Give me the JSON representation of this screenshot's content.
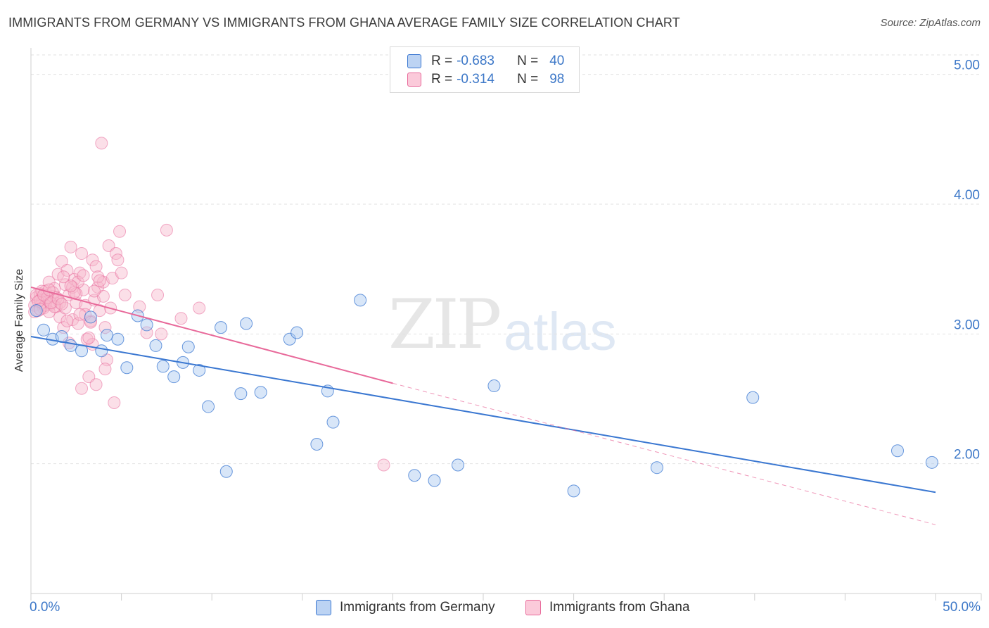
{
  "title": "IMMIGRANTS FROM GERMANY VS IMMIGRANTS FROM GHANA AVERAGE FAMILY SIZE CORRELATION CHART",
  "source": "Source: ZipAtlas.com",
  "watermark": {
    "zip": "ZIP",
    "atlas": "atlas"
  },
  "legend": {
    "r_label": "R =",
    "n_label": "N =",
    "germany": {
      "r": "-0.683",
      "n": "40"
    },
    "ghana": {
      "r": "-0.314",
      "n": "98"
    }
  },
  "bottom_legend": {
    "germany": "Immigrants from Germany",
    "ghana": "Immigrants from Ghana"
  },
  "chart_data": {
    "type": "scatter",
    "title": "IMMIGRANTS FROM GERMANY VS IMMIGRANTS FROM GHANA AVERAGE FAMILY SIZE CORRELATION CHART",
    "xlabel": "",
    "ylabel": "Average Family Size",
    "xlim": [
      0,
      50
    ],
    "ylim": [
      1.0,
      5.15
    ],
    "x_tick_labels": [
      "0.0%",
      "50.0%"
    ],
    "y_ticks": [
      2.0,
      3.0,
      4.0,
      5.0
    ],
    "y_tick_labels": [
      "2.00",
      "3.00",
      "4.00",
      "5.00"
    ],
    "colors": {
      "germany": "#3a77d1",
      "germany_fill": "#a9c8f0",
      "ghana": "#e8699a",
      "ghana_fill": "#f7b7cd"
    },
    "series": [
      {
        "name": "Immigrants from Germany",
        "r": -0.683,
        "n": 40,
        "trend": {
          "x0": 0.0,
          "y0": 2.98,
          "x1": 50.0,
          "y1": 1.78
        },
        "points": [
          [
            0.3,
            3.18
          ],
          [
            0.7,
            3.03
          ],
          [
            1.2,
            2.96
          ],
          [
            1.7,
            2.98
          ],
          [
            2.2,
            2.91
          ],
          [
            2.8,
            2.87
          ],
          [
            3.3,
            3.13
          ],
          [
            3.9,
            2.87
          ],
          [
            4.2,
            2.99
          ],
          [
            4.8,
            2.96
          ],
          [
            5.3,
            2.74
          ],
          [
            5.9,
            3.14
          ],
          [
            6.4,
            3.07
          ],
          [
            6.9,
            2.91
          ],
          [
            7.3,
            2.75
          ],
          [
            7.9,
            2.67
          ],
          [
            8.4,
            2.78
          ],
          [
            8.7,
            2.9
          ],
          [
            9.3,
            2.72
          ],
          [
            9.8,
            2.44
          ],
          [
            10.5,
            3.05
          ],
          [
            10.8,
            1.94
          ],
          [
            11.6,
            2.54
          ],
          [
            11.9,
            3.08
          ],
          [
            12.7,
            2.55
          ],
          [
            14.3,
            2.96
          ],
          [
            14.7,
            3.01
          ],
          [
            15.8,
            2.15
          ],
          [
            16.4,
            2.56
          ],
          [
            16.7,
            2.32
          ],
          [
            18.2,
            3.26
          ],
          [
            21.2,
            1.91
          ],
          [
            22.3,
            1.87
          ],
          [
            23.6,
            1.99
          ],
          [
            25.6,
            2.6
          ],
          [
            30.0,
            1.79
          ],
          [
            34.6,
            1.97
          ],
          [
            39.9,
            2.51
          ],
          [
            47.9,
            2.1
          ],
          [
            49.8,
            2.01
          ]
        ]
      },
      {
        "name": "Immigrants from Ghana",
        "r": -0.314,
        "n": 98,
        "trend": {
          "x0": 0.0,
          "y0": 3.36,
          "x1": 20.0,
          "y1": 2.62
        },
        "trend_dashed": {
          "x0": 20.0,
          "y0": 2.62,
          "x1": 50.0,
          "y1": 1.53
        },
        "points": [
          [
            0.2,
            3.22
          ],
          [
            0.3,
            3.28
          ],
          [
            0.4,
            3.18
          ],
          [
            0.5,
            3.31
          ],
          [
            0.6,
            3.24
          ],
          [
            0.7,
            3.2
          ],
          [
            0.8,
            3.33
          ],
          [
            0.9,
            3.27
          ],
          [
            1.0,
            3.4
          ],
          [
            1.1,
            3.23
          ],
          [
            1.2,
            3.29
          ],
          [
            1.3,
            3.35
          ],
          [
            1.4,
            3.21
          ],
          [
            1.5,
            3.46
          ],
          [
            1.6,
            3.13
          ],
          [
            1.7,
            3.56
          ],
          [
            1.8,
            3.05
          ],
          [
            1.9,
            3.38
          ],
          [
            2.0,
            3.49
          ],
          [
            2.1,
            3.3
          ],
          [
            2.2,
            3.67
          ],
          [
            2.3,
            3.11
          ],
          [
            2.4,
            3.42
          ],
          [
            2.5,
            3.24
          ],
          [
            2.6,
            3.08
          ],
          [
            2.7,
            3.47
          ],
          [
            2.8,
            3.62
          ],
          [
            2.9,
            3.34
          ],
          [
            3.0,
            3.22
          ],
          [
            3.1,
            2.96
          ],
          [
            3.2,
            2.67
          ],
          [
            3.3,
            3.1
          ],
          [
            3.4,
            3.57
          ],
          [
            3.5,
            3.26
          ],
          [
            3.6,
            3.52
          ],
          [
            3.7,
            3.36
          ],
          [
            3.8,
            3.18
          ],
          [
            3.9,
            4.47
          ],
          [
            4.0,
            3.4
          ],
          [
            4.1,
            3.05
          ],
          [
            4.2,
            2.8
          ],
          [
            4.3,
            3.68
          ],
          [
            4.4,
            3.2
          ],
          [
            4.5,
            3.43
          ],
          [
            4.6,
            2.47
          ],
          [
            4.7,
            3.62
          ],
          [
            4.8,
            3.57
          ],
          [
            4.9,
            3.79
          ],
          [
            5.0,
            3.47
          ],
          [
            5.2,
            3.3
          ],
          [
            6.0,
            3.21
          ],
          [
            6.4,
            3.01
          ],
          [
            7.0,
            3.3
          ],
          [
            7.2,
            3.0
          ],
          [
            7.5,
            3.8
          ],
          [
            8.3,
            3.12
          ],
          [
            9.3,
            3.2
          ],
          [
            19.5,
            1.99
          ],
          [
            0.3,
            3.3
          ],
          [
            0.5,
            3.26
          ],
          [
            0.8,
            3.22
          ],
          [
            1.0,
            3.17
          ],
          [
            1.2,
            3.32
          ],
          [
            1.4,
            3.28
          ],
          [
            1.6,
            3.24
          ],
          [
            1.9,
            3.2
          ],
          [
            2.3,
            3.36
          ],
          [
            2.6,
            3.4
          ],
          [
            3.0,
            3.15
          ],
          [
            3.4,
            2.92
          ],
          [
            3.7,
            3.44
          ],
          [
            4.0,
            3.29
          ],
          [
            0.4,
            3.25
          ],
          [
            0.6,
            3.33
          ],
          [
            0.9,
            3.28
          ],
          [
            1.3,
            3.21
          ],
          [
            1.8,
            3.44
          ],
          [
            2.1,
            2.93
          ],
          [
            2.5,
            3.31
          ],
          [
            2.8,
            2.58
          ],
          [
            3.2,
            2.97
          ],
          [
            3.6,
            2.61
          ],
          [
            4.1,
            2.73
          ],
          [
            0.2,
            3.17
          ],
          [
            0.7,
            3.3
          ],
          [
            1.1,
            3.24
          ],
          [
            1.5,
            3.27
          ],
          [
            2.0,
            3.1
          ],
          [
            2.4,
            3.32
          ],
          [
            2.9,
            3.45
          ],
          [
            3.3,
            3.09
          ],
          [
            3.8,
            3.41
          ],
          [
            0.5,
            3.19
          ],
          [
            1.0,
            3.34
          ],
          [
            1.7,
            3.23
          ],
          [
            2.2,
            3.37
          ],
          [
            2.7,
            3.15
          ],
          [
            3.5,
            3.33
          ]
        ]
      }
    ]
  }
}
